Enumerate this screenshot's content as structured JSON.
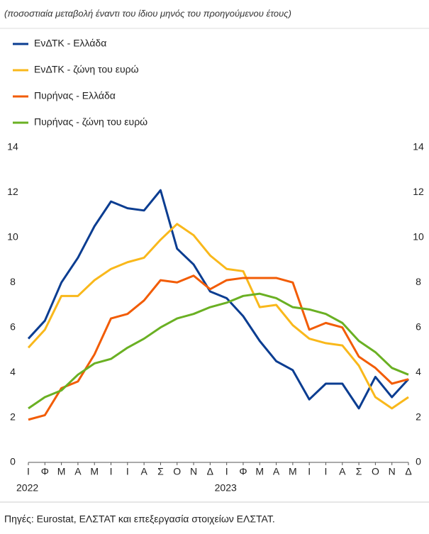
{
  "chart_data": {
    "type": "line",
    "subtitle": "(ποσοστιαία μεταβολή έναντι του ίδιου μηνός του προηγούμενου έτους)",
    "source": "Πηγές: Eurostat, ΕΛΣΤΑΤ και επεξεργασία στοιχείων ΕΛΣΤΑΤ.",
    "categories": [
      "Ι",
      "Φ",
      "Μ",
      "Α",
      "Μ",
      "Ι",
      "Ι",
      "Α",
      "Σ",
      "Ο",
      "Ν",
      "Δ",
      "Ι",
      "Φ",
      "Μ",
      "Α",
      "Μ",
      "Ι",
      "Ι",
      "Α",
      "Σ",
      "Ο",
      "Ν",
      "Δ"
    ],
    "years": [
      "2022",
      "2023"
    ],
    "series": [
      {
        "name": "ΕνΔΤΚ - Ελλάδα",
        "color": "#0b3d91",
        "values": [
          5.5,
          6.3,
          8.0,
          9.1,
          10.5,
          11.6,
          11.3,
          11.2,
          12.1,
          9.5,
          8.8,
          7.6,
          7.3,
          6.5,
          5.4,
          4.5,
          4.1,
          2.8,
          3.5,
          3.5,
          2.4,
          3.8,
          2.9,
          3.7
        ]
      },
      {
        "name": "ΕνΔΤΚ - ζώνη του ευρώ",
        "color": "#f9b81b",
        "values": [
          5.1,
          5.9,
          7.4,
          7.4,
          8.1,
          8.6,
          8.9,
          9.1,
          9.9,
          10.6,
          10.1,
          9.2,
          8.6,
          8.5,
          6.9,
          7.0,
          6.1,
          5.5,
          5.3,
          5.2,
          4.3,
          2.9,
          2.4,
          2.9
        ]
      },
      {
        "name": "Πυρήνας - Ελλάδα",
        "color": "#f25c05",
        "values": [
          1.9,
          2.1,
          3.3,
          3.6,
          4.8,
          6.4,
          6.6,
          7.2,
          8.1,
          8.0,
          8.3,
          7.7,
          8.1,
          8.2,
          8.2,
          8.2,
          8.0,
          5.9,
          6.2,
          6.0,
          4.7,
          4.2,
          3.5,
          3.7
        ]
      },
      {
        "name": "Πυρήνας - ζώνη του ευρώ",
        "color": "#6ab023",
        "values": [
          2.4,
          2.9,
          3.2,
          3.9,
          4.4,
          4.6,
          5.1,
          5.5,
          6.0,
          6.4,
          6.6,
          6.9,
          7.1,
          7.4,
          7.5,
          7.3,
          6.9,
          6.8,
          6.6,
          6.2,
          5.4,
          4.9,
          4.2,
          3.9
        ]
      }
    ],
    "ylim": [
      0,
      14
    ],
    "yticks": [
      0,
      2,
      4,
      6,
      8,
      10,
      12,
      14
    ],
    "mirror_y_axis": true,
    "grid": false,
    "legend": "top-left"
  }
}
